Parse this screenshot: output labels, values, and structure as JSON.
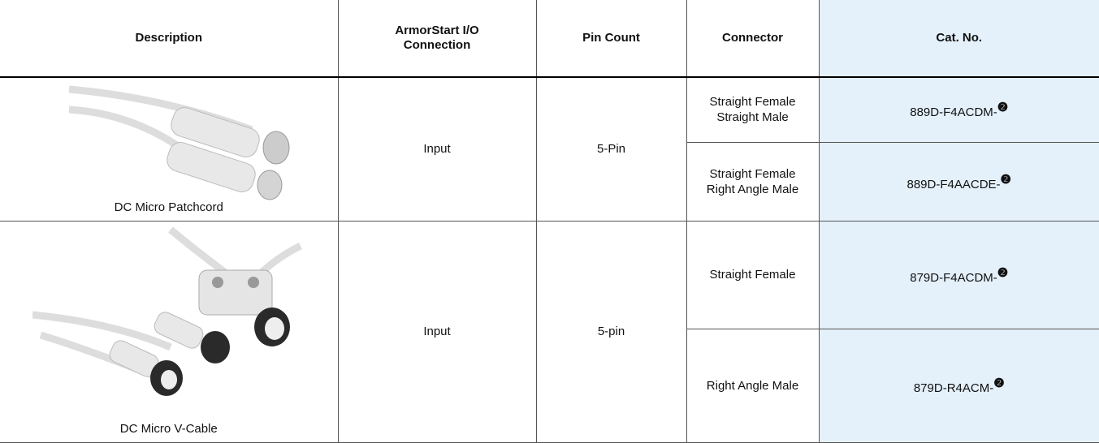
{
  "table": {
    "headers": [
      "Description",
      "ArmorStart I/O Connection",
      "Pin Count",
      "Connector",
      "Cat. No."
    ],
    "rows": [
      {
        "description": "DC Micro Patchcord",
        "connection": "Input",
        "pin_count": "5-Pin",
        "variants": [
          {
            "connector": [
              "Straight Female",
              "Straight Male"
            ],
            "cat_no": "889D-F4ACDM-",
            "note": "❷"
          },
          {
            "connector": [
              "Straight Female",
              "Right Angle Male"
            ],
            "cat_no": "889D-F4AACDE-",
            "note": "❷"
          }
        ]
      },
      {
        "description": "DC Micro V-Cable",
        "connection": "Input",
        "pin_count": "5-pin",
        "variants": [
          {
            "connector": [
              "Straight Female"
            ],
            "cat_no": "879D-F4ACDM-",
            "note": "❷"
          },
          {
            "connector": [
              "Right Angle Male"
            ],
            "cat_no": "879D-R4ACM-",
            "note": "❷"
          }
        ]
      }
    ]
  }
}
